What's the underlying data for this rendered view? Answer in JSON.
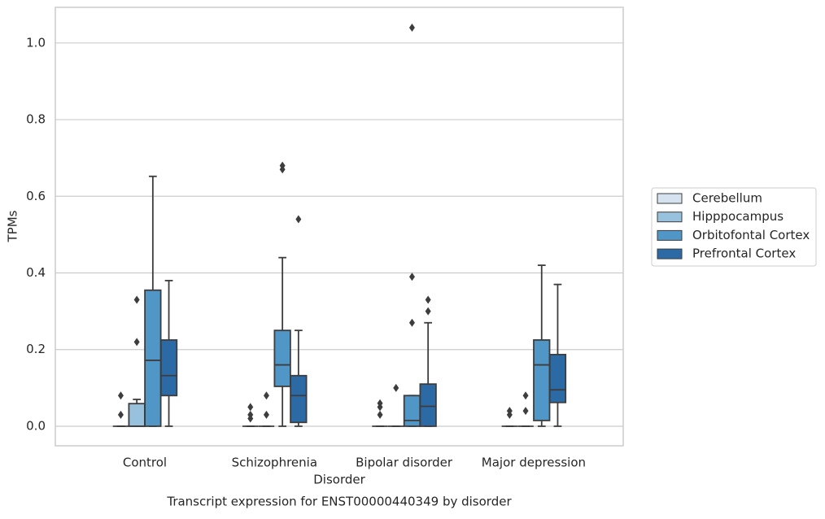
{
  "chart_data": {
    "type": "boxplot",
    "title": "Transcript expression for ENST00000440349 by disorder",
    "x_label": "Disorder",
    "y_label": "TPMs",
    "categories": [
      "Control",
      "Schizophrenia",
      "Bipolar disorder",
      "Major depression"
    ],
    "ylim": [
      -0.051,
      1.093
    ],
    "yticks": [
      {
        "value": 0,
        "label": "0.0"
      },
      0.2,
      0.4,
      0.6,
      0.8,
      {
        "value": 1,
        "label": "1.0"
      }
    ],
    "grid": true,
    "legend_position": "right",
    "series": [
      {
        "name": "Cerebellum",
        "color": "#d5e3f0",
        "values": [
          {
            "min": 0,
            "q1": 0,
            "median": 0,
            "q3": 0,
            "max": 0,
            "outliers": [
              0.08,
              0.03
            ]
          },
          {
            "min": 0,
            "q1": 0,
            "median": 0,
            "q3": 0,
            "max": 0,
            "outliers": [
              0.05,
              0.03,
              0.02
            ]
          },
          {
            "min": 0,
            "q1": 0,
            "median": 0,
            "q3": 0,
            "max": 0,
            "outliers": [
              0.06,
              0.05,
              0.03
            ]
          },
          {
            "min": 0,
            "q1": 0,
            "median": 0,
            "q3": 0,
            "max": 0,
            "outliers": [
              0.04,
              0.03
            ]
          }
        ]
      },
      {
        "name": "Hipppocampus",
        "color": "#98c1de",
        "values": [
          {
            "min": 0,
            "q1": 0,
            "median": 0,
            "q3": 0.059,
            "max": 0.07,
            "outliers": [
              0.22,
              0.33
            ]
          },
          {
            "min": 0,
            "q1": 0,
            "median": 0,
            "q3": 0,
            "max": 0,
            "outliers": [
              0.08,
              0.03
            ]
          },
          {
            "min": 0,
            "q1": 0,
            "median": 0,
            "q3": 0,
            "max": 0,
            "outliers": [
              0.1
            ]
          },
          {
            "min": 0,
            "q1": 0,
            "median": 0,
            "q3": 0,
            "max": 0,
            "outliers": [
              0.08,
              0.04
            ]
          }
        ]
      },
      {
        "name": "Orbitofontal Cortex",
        "color": "#5096c6",
        "values": [
          {
            "min": 0,
            "q1": 0,
            "median": 0.172,
            "q3": 0.355,
            "max": 0.652,
            "outliers": []
          },
          {
            "min": 0,
            "q1": 0.104,
            "median": 0.16,
            "q3": 0.25,
            "max": 0.44,
            "outliers": [
              0.68,
              0.67
            ]
          },
          {
            "min": 0,
            "q1": 0,
            "median": 0.015,
            "q3": 0.08,
            "max": 0.08,
            "outliers": [
              0.27,
              0.39,
              1.04
            ]
          },
          {
            "min": 0,
            "q1": 0.015,
            "median": 0.16,
            "q3": 0.225,
            "max": 0.42,
            "outliers": []
          }
        ]
      },
      {
        "name": "Prefrontal Cortex",
        "color": "#2c6aa6",
        "values": [
          {
            "min": 0,
            "q1": 0.08,
            "median": 0.132,
            "q3": 0.225,
            "max": 0.38,
            "outliers": []
          },
          {
            "min": 0,
            "q1": 0.01,
            "median": 0.08,
            "q3": 0.132,
            "max": 0.25,
            "outliers": [
              0.54
            ]
          },
          {
            "min": 0,
            "q1": 0,
            "median": 0.052,
            "q3": 0.11,
            "max": 0.27,
            "outliers": [
              0.3,
              0.33
            ]
          },
          {
            "min": 0,
            "q1": 0.062,
            "median": 0.095,
            "q3": 0.187,
            "max": 0.37,
            "outliers": []
          }
        ]
      }
    ]
  }
}
